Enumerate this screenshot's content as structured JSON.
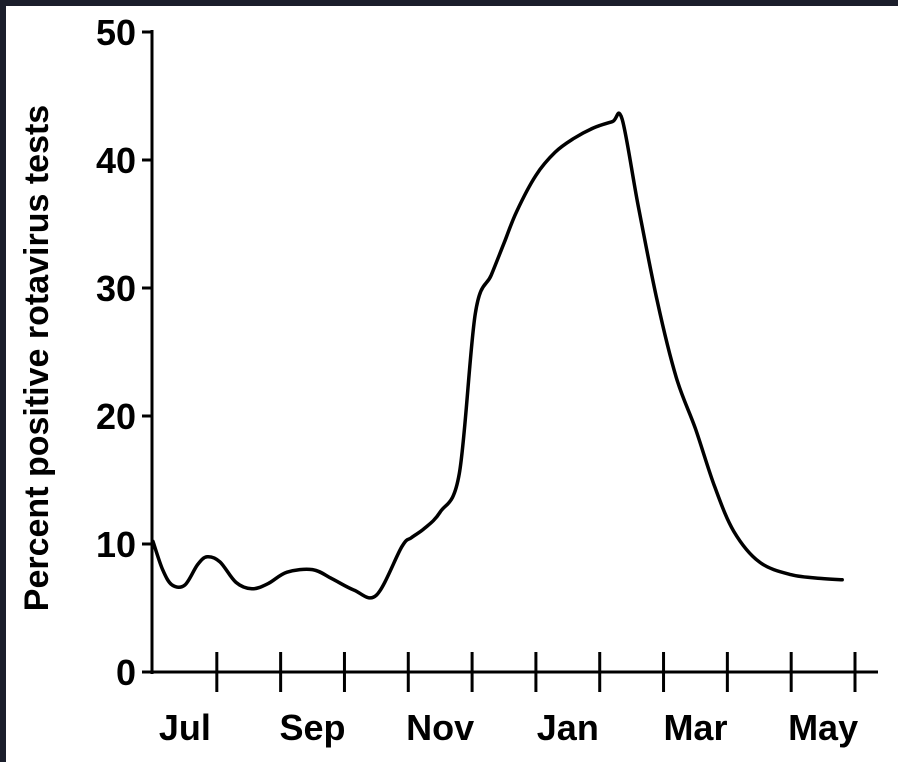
{
  "chart_data": {
    "type": "line",
    "title": "",
    "xlabel": "",
    "ylabel": "Percent positive rotavirus tests",
    "ylim": [
      0,
      50
    ],
    "yticks": [
      0,
      10,
      20,
      30,
      40,
      50
    ],
    "xlim": [
      0,
      11
    ],
    "month_ticks": [
      0,
      1,
      2,
      3,
      4,
      5,
      6,
      7,
      8,
      9,
      10,
      11
    ],
    "xtick_labels": [
      {
        "label": "Jul",
        "x": 0.5
      },
      {
        "label": "Sep",
        "x": 2.5
      },
      {
        "label": "Nov",
        "x": 4.5
      },
      {
        "label": "Jan",
        "x": 6.5
      },
      {
        "label": "Mar",
        "x": 8.5
      },
      {
        "label": "May",
        "x": 10.5
      }
    ],
    "grid": false,
    "series": [
      {
        "color": "#000000",
        "x": [
          0.0,
          0.15,
          0.3,
          0.5,
          0.7,
          0.85,
          1.05,
          1.3,
          1.55,
          1.8,
          2.1,
          2.5,
          2.8,
          3.15,
          3.5,
          3.9,
          4.05,
          4.25,
          4.5,
          4.8,
          5.05,
          5.3,
          5.5,
          5.7,
          6.0,
          6.3,
          6.6,
          6.9,
          7.2,
          7.35,
          7.6,
          7.9,
          8.2,
          8.5,
          8.8,
          9.1,
          9.5,
          10.0,
          10.5,
          10.8
        ],
        "y": [
          10.2,
          8.0,
          6.8,
          6.8,
          8.4,
          9.0,
          8.6,
          7.0,
          6.5,
          6.9,
          7.8,
          8.0,
          7.3,
          6.4,
          6.0,
          9.8,
          10.5,
          11.2,
          12.5,
          15.5,
          28.0,
          31.0,
          33.5,
          36.0,
          38.8,
          40.6,
          41.7,
          42.5,
          43.0,
          43.2,
          36.5,
          29.0,
          23.0,
          19.0,
          14.5,
          11.0,
          8.6,
          7.6,
          7.3,
          7.2
        ]
      }
    ]
  }
}
